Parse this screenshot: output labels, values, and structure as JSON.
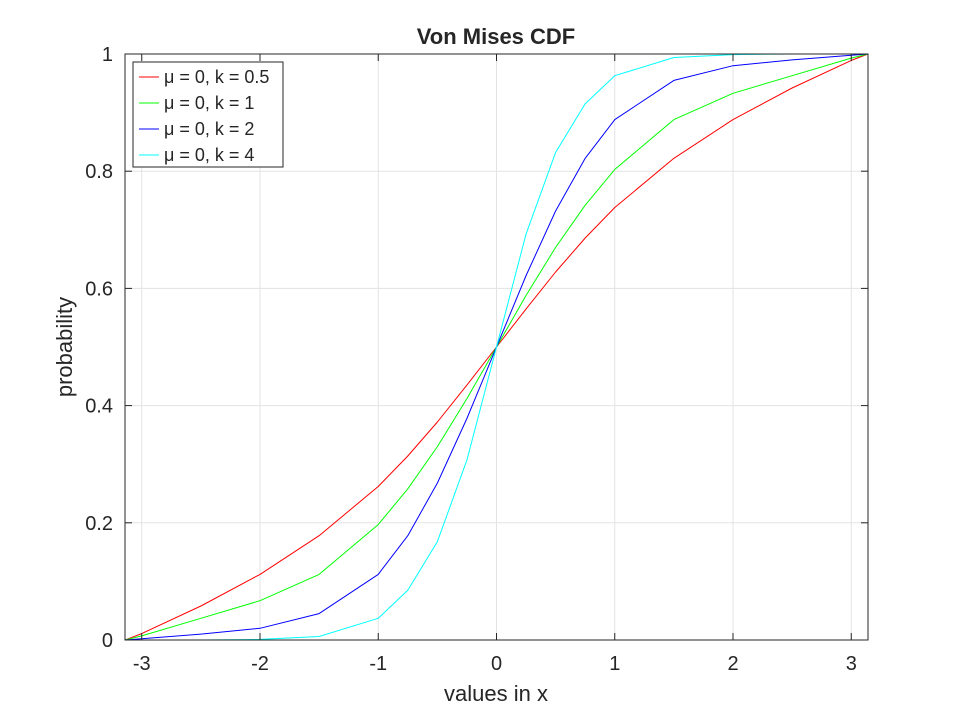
{
  "chart_data": {
    "type": "line",
    "title": "Von Mises CDF",
    "xlabel": "values in x",
    "ylabel": "probability",
    "xlim": [
      -3.1416,
      3.1416
    ],
    "ylim": [
      0,
      1
    ],
    "xticks": [
      -3,
      -2,
      -1,
      0,
      1,
      2,
      3
    ],
    "yticks": [
      0,
      0.2,
      0.4,
      0.6,
      0.8,
      1
    ],
    "xtick_labels": [
      "-3",
      "-2",
      "-1",
      "0",
      "1",
      "2",
      "3"
    ],
    "ytick_labels": [
      "0",
      "0.2",
      "0.4",
      "0.6",
      "0.8",
      "1"
    ],
    "grid": true,
    "legend_position": "top-left",
    "x": [
      -3.1416,
      -3.0,
      -2.5,
      -2.0,
      -1.5,
      -1.0,
      -0.75,
      -0.5,
      -0.25,
      0.0,
      0.25,
      0.5,
      0.75,
      1.0,
      1.5,
      2.0,
      2.5,
      3.0,
      3.1416
    ],
    "series": [
      {
        "name": "μ = 0, k = 0.5",
        "color": "#ff0000",
        "values": [
          0.0,
          0.011,
          0.058,
          0.112,
          0.178,
          0.262,
          0.314,
          0.372,
          0.435,
          0.5,
          0.565,
          0.628,
          0.686,
          0.738,
          0.822,
          0.888,
          0.942,
          0.989,
          1.0
        ]
      },
      {
        "name": "μ = 0, k = 1",
        "color": "#00ff00",
        "values": [
          0.0,
          0.007,
          0.037,
          0.067,
          0.112,
          0.197,
          0.258,
          0.33,
          0.412,
          0.5,
          0.588,
          0.67,
          0.742,
          0.803,
          0.888,
          0.933,
          0.963,
          0.993,
          1.0
        ]
      },
      {
        "name": "μ = 0, k = 2",
        "color": "#0000ff",
        "values": [
          0.0,
          0.002,
          0.01,
          0.02,
          0.045,
          0.112,
          0.178,
          0.268,
          0.378,
          0.5,
          0.622,
          0.732,
          0.822,
          0.888,
          0.955,
          0.98,
          0.99,
          0.998,
          1.0
        ]
      },
      {
        "name": "μ = 0, k = 4",
        "color": "#00ffff",
        "values": [
          0.0,
          0.0,
          0.0,
          0.001,
          0.006,
          0.037,
          0.085,
          0.168,
          0.307,
          0.5,
          0.693,
          0.832,
          0.915,
          0.963,
          0.994,
          0.999,
          1.0,
          1.0,
          1.0
        ]
      }
    ]
  }
}
